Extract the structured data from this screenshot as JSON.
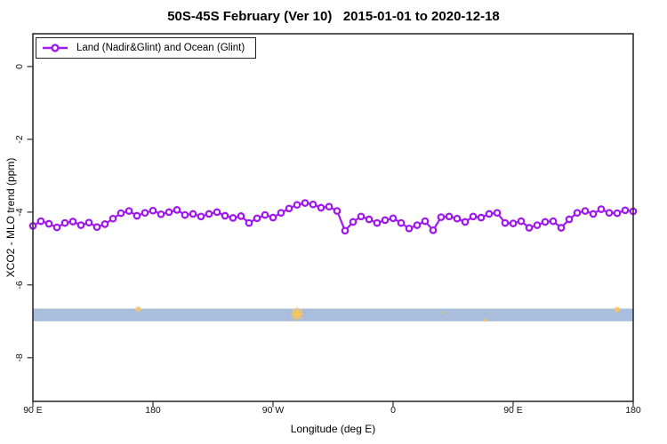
{
  "figure": {
    "title": "50S-45S February (Ver 10)   2015-01-01 to 2020-12-18"
  },
  "legend": {
    "label": "Land (Nadir&Glint) and Ocean (Glint)"
  },
  "colors": {
    "line": "#A01AEB",
    "marker_fill": "#ffffff",
    "band": "#A8BEDC",
    "flag": "#F7C55F",
    "axis": "#2e2e2e"
  },
  "chart_data": {
    "type": "line",
    "title": "50S-45S February (Ver 10)   2015-01-01 to 2020-12-18",
    "xlabel": "Longitude (deg E)",
    "ylabel": "XCO2 - MLO trend (ppm)",
    "xlim": [
      90,
      540
    ],
    "ylim": [
      -9.2,
      0.9
    ],
    "grid": false,
    "legend_position": "top-left",
    "x_ticks": [
      {
        "v": 90,
        "label": "90 E"
      },
      {
        "v": 180,
        "label": "180"
      },
      {
        "v": 270,
        "label": "90 W"
      },
      {
        "v": 360,
        "label": "0"
      },
      {
        "v": 450,
        "label": "90 E"
      },
      {
        "v": 540,
        "label": "180"
      }
    ],
    "y_ticks": [
      {
        "v": 0,
        "label": "0"
      },
      {
        "v": -2,
        "label": "-2"
      },
      {
        "v": -4,
        "label": "-4"
      },
      {
        "v": -6,
        "label": "-6"
      },
      {
        "v": -8,
        "label": "-8"
      }
    ],
    "series": [
      {
        "name": "Land (Nadir&Glint) and Ocean (Glint)",
        "x": [
          90,
          96,
          102,
          108,
          114,
          120,
          126,
          132,
          138,
          144,
          150,
          156,
          162,
          168,
          174,
          180,
          186,
          192,
          198,
          204,
          210,
          216,
          222,
          228,
          234,
          240,
          246,
          252,
          258,
          264,
          270,
          276,
          282,
          288,
          294,
          300,
          306,
          312,
          318,
          324,
          330,
          336,
          342,
          348,
          354,
          360,
          366,
          372,
          378,
          384,
          390,
          396,
          402,
          408,
          414,
          420,
          426,
          432,
          438,
          444,
          450,
          456,
          462,
          468,
          474,
          480,
          486,
          492,
          498,
          504,
          510,
          516,
          522,
          528,
          534,
          540
        ],
        "values": [
          -4.38,
          -4.25,
          -4.32,
          -4.42,
          -4.3,
          -4.26,
          -4.36,
          -4.29,
          -4.41,
          -4.33,
          -4.18,
          -4.03,
          -3.97,
          -4.1,
          -4.02,
          -3.96,
          -4.06,
          -4.0,
          -3.94,
          -4.08,
          -4.05,
          -4.12,
          -4.05,
          -4.0,
          -4.1,
          -4.16,
          -4.11,
          -4.3,
          -4.17,
          -4.08,
          -4.15,
          -4.02,
          -3.9,
          -3.8,
          -3.75,
          -3.79,
          -3.88,
          -3.85,
          -3.97,
          -4.51,
          -4.27,
          -4.12,
          -4.2,
          -4.3,
          -4.22,
          -4.17,
          -4.3,
          -4.45,
          -4.36,
          -4.25,
          -4.5,
          -4.14,
          -4.12,
          -4.18,
          -4.27,
          -4.12,
          -4.15,
          -4.05,
          -4.02,
          -4.3,
          -4.31,
          -4.25,
          -4.43,
          -4.36,
          -4.27,
          -4.25,
          -4.43,
          -4.2,
          -4.02,
          -3.97,
          -4.05,
          -3.92,
          -4.02,
          -4.03,
          -3.95,
          -3.98
        ]
      }
    ],
    "band": {
      "y_top": -6.65,
      "y_bottom": -7.0,
      "x_start": 90,
      "x_end": 540
    },
    "flags": [
      {
        "x": 169,
        "y": -6.67,
        "size": 4.5
      },
      {
        "x": 288,
        "y": -6.8,
        "size": 9
      },
      {
        "x": 398,
        "y": -6.76,
        "size": 2
      },
      {
        "x": 429,
        "y": -6.97,
        "size": 2.5
      },
      {
        "x": 528,
        "y": -6.68,
        "size": 4.5
      }
    ]
  }
}
